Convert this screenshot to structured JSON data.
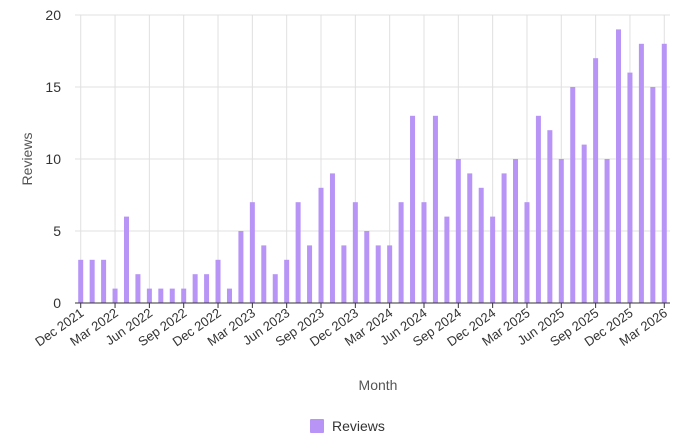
{
  "chart_data": {
    "type": "bar",
    "xlabel": "Month",
    "ylabel": "Reviews",
    "ylim": [
      0,
      20
    ],
    "yticks": [
      0,
      5,
      10,
      15,
      20
    ],
    "grid": true,
    "legend_position": "bottom-center",
    "bar_color": "#b794f6",
    "categories": [
      "Dec 2021",
      "Jan 2022",
      "Feb 2022",
      "Mar 2022",
      "Apr 2022",
      "May 2022",
      "Jun 2022",
      "Jul 2022",
      "Aug 2022",
      "Sep 2022",
      "Oct 2022",
      "Nov 2022",
      "Dec 2022",
      "Jan 2023",
      "Feb 2023",
      "Mar 2023",
      "Apr 2023",
      "May 2023",
      "Jun 2023",
      "Jul 2023",
      "Aug 2023",
      "Sep 2023",
      "Oct 2023",
      "Nov 2023",
      "Dec 2023",
      "Jan 2024",
      "Feb 2024",
      "Mar 2024",
      "Apr 2024",
      "May 2024",
      "Jun 2024",
      "Jul 2024",
      "Aug 2024",
      "Sep 2024",
      "Oct 2024",
      "Nov 2024",
      "Dec 2024",
      "Jan 2025",
      "Feb 2025",
      "Mar 2025",
      "Apr 2025",
      "May 2025",
      "Jun 2025",
      "Jul 2025",
      "Aug 2025",
      "Sep 2025",
      "Oct 2025",
      "Nov 2025",
      "Dec 2025",
      "Jan 2026",
      "Feb 2026",
      "Mar 2026"
    ],
    "x_tick_labels": [
      "Dec 2021",
      "Mar 2022",
      "Jun 2022",
      "Sep 2022",
      "Dec 2022",
      "Mar 2023",
      "Jun 2023",
      "Sep 2023",
      "Dec 2023",
      "Mar 2024",
      "Jun 2024",
      "Sep 2024",
      "Dec 2024",
      "Mar 2025",
      "Jun 2025",
      "Sep 2025",
      "Dec 2025",
      "Mar 2026"
    ],
    "series": [
      {
        "name": "Reviews",
        "values": [
          3,
          3,
          3,
          1,
          6,
          2,
          1,
          1,
          1,
          1,
          2,
          2,
          3,
          1,
          5,
          7,
          4,
          2,
          3,
          7,
          4,
          8,
          9,
          4,
          7,
          5,
          4,
          4,
          7,
          13,
          7,
          13,
          6,
          10,
          9,
          8,
          6,
          9,
          10,
          7,
          13,
          12,
          10,
          15,
          11,
          17,
          10,
          19,
          16,
          18,
          15,
          18
        ]
      }
    ]
  }
}
